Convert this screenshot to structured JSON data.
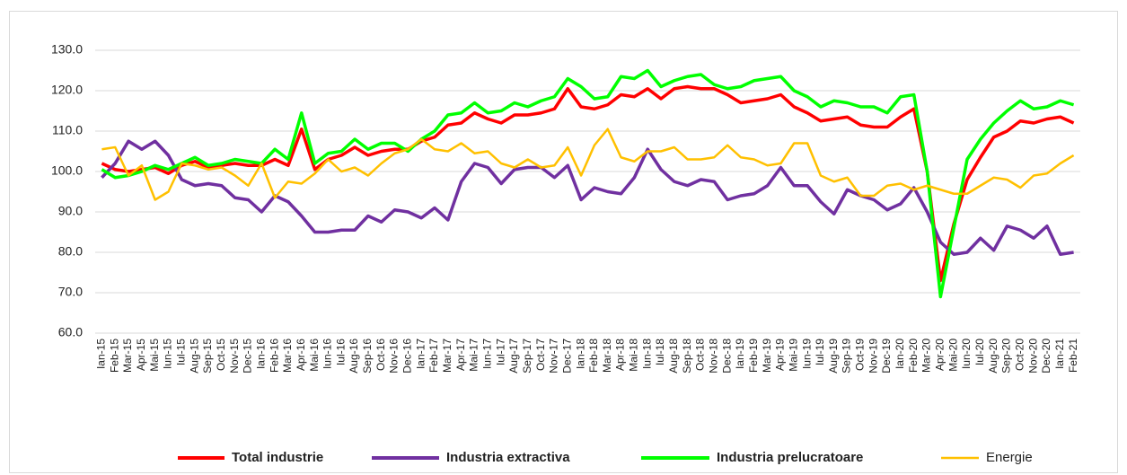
{
  "chart_data": {
    "type": "line",
    "categories": [
      "Ian-15",
      "Feb-15",
      "Mar-15",
      "Apr-15",
      "Mai-15",
      "Iun-15",
      "Iul-15",
      "Aug-15",
      "Sep-15",
      "Oct-15",
      "Nov-15",
      "Dec-15",
      "Ian-16",
      "Feb-16",
      "Mar-16",
      "Apr-16",
      "Mai-16",
      "Iun-16",
      "Iul-16",
      "Aug-16",
      "Sep-16",
      "Oct-16",
      "Nov-16",
      "Dec-16",
      "Ian-17",
      "Feb-17",
      "Mar-17",
      "Apr-17",
      "Mai-17",
      "Iun-17",
      "Iul-17",
      "Aug-17",
      "Sep-17",
      "Oct-17",
      "Nov-17",
      "Dec-17",
      "Ian-18",
      "Feb-18",
      "Mar-18",
      "Apr-18",
      "Mai-18",
      "Iun-18",
      "Iul-18",
      "Aug-18",
      "Sep-18",
      "Oct-18",
      "Nov-18",
      "Dec-18",
      "Ian-19",
      "Feb-19",
      "Mar-19",
      "Apr-19",
      "Mai-19",
      "Iun-19",
      "Iul-19",
      "Aug-19",
      "Sep-19",
      "Oct-19",
      "Nov-19",
      "Dec-19",
      "Ian-20",
      "Feb-20",
      "Mar-20",
      "Apr-20",
      "Mai-20",
      "Iun-20",
      "Iul-20",
      "Aug-20",
      "Sep-20",
      "Oct-20",
      "Nov-20",
      "Dec-20",
      "Ian-21",
      "Feb-21"
    ],
    "series": [
      {
        "name": "Total industrie",
        "color": "#ff0000",
        "values": [
          102,
          100.5,
          100,
          100.5,
          101,
          99.5,
          101.5,
          102.5,
          101,
          101.5,
          102,
          101.5,
          101.5,
          103,
          101.5,
          110.5,
          100.5,
          103,
          104,
          106,
          104,
          105,
          105.5,
          105.5,
          107.5,
          108.5,
          111.5,
          112,
          114.5,
          113,
          112,
          114,
          114,
          114.5,
          115.5,
          120.5,
          116,
          115.5,
          116.5,
          119,
          118.5,
          120.5,
          118,
          120.5,
          121,
          120.5,
          120.5,
          119,
          117,
          117.5,
          118,
          119,
          116,
          114.5,
          112.5,
          113,
          113.5,
          111.5,
          111,
          111,
          113.5,
          115.5,
          100,
          73,
          87,
          98,
          103.5,
          108.5,
          110,
          112.5,
          112,
          113,
          113.5,
          112
        ]
      },
      {
        "name": "Industria extractiva",
        "color": "#7030a0",
        "values": [
          98.5,
          102,
          107.5,
          105.5,
          107.5,
          104,
          98,
          96.5,
          97,
          96.5,
          93.5,
          93,
          90,
          94,
          92.5,
          89,
          85,
          85,
          85.5,
          85.5,
          89,
          87.5,
          90.5,
          90,
          88.5,
          91,
          88,
          97.5,
          102,
          101,
          97,
          100.5,
          101,
          101,
          98.5,
          101.5,
          93,
          96,
          95,
          94.5,
          98.5,
          105.5,
          100.5,
          97.5,
          96.5,
          98,
          97.5,
          93,
          94,
          94.5,
          96.5,
          101,
          96.5,
          96.5,
          92.5,
          89.5,
          95.5,
          94,
          93,
          90.5,
          92,
          96,
          90,
          82.5,
          79.5,
          80,
          83.5,
          80.5,
          86.5,
          85.5,
          83.5,
          86.5,
          79.5,
          80
        ]
      },
      {
        "name": "Industria prelucratoare",
        "color": "#00ff00",
        "values": [
          100.5,
          98.5,
          99,
          100,
          101.5,
          100.5,
          102,
          103.5,
          101.5,
          102,
          103,
          102.5,
          102,
          105.5,
          103,
          114.5,
          102,
          104.5,
          105,
          108,
          105.5,
          107,
          107,
          105,
          108,
          110,
          114,
          114.5,
          117,
          114.5,
          115,
          117,
          116,
          117.5,
          118.5,
          123,
          121,
          118,
          118.5,
          123.5,
          123,
          125,
          121,
          122.5,
          123.5,
          124,
          121.5,
          120.5,
          121,
          122.5,
          123,
          123.5,
          120,
          118.5,
          116,
          117.5,
          117,
          116,
          116,
          114.5,
          118.5,
          119,
          100,
          69,
          86,
          103,
          108,
          112,
          115,
          117.5,
          115.5,
          116,
          117.5,
          116.5
        ]
      },
      {
        "name": "Energie",
        "color": "#ffc000",
        "values": [
          105.5,
          106,
          99,
          101.5,
          93,
          95,
          102,
          101.5,
          100.5,
          101,
          99,
          96.5,
          102,
          93.5,
          97.5,
          97,
          99.5,
          103,
          100,
          101,
          99,
          102,
          104.5,
          105.5,
          108,
          105.5,
          105,
          107,
          104.5,
          105,
          102,
          101,
          103,
          101,
          101.5,
          106,
          99,
          106.5,
          110.5,
          103.5,
          102.5,
          105,
          105,
          106,
          103,
          103,
          103.5,
          106.5,
          103.5,
          103,
          101.5,
          102,
          107,
          107,
          99,
          97.5,
          98.5,
          94,
          94,
          96.5,
          97,
          95.5,
          96.5,
          95.5,
          94.5,
          94.5,
          96.5,
          98.5,
          98,
          96,
          99,
          99.5,
          102,
          104
        ]
      }
    ],
    "ylim": [
      60,
      130
    ],
    "yticks": [
      {
        "value": 60,
        "label": "60.0"
      },
      {
        "value": 70,
        "label": "70.0"
      },
      {
        "value": 80,
        "label": "80.0"
      },
      {
        "value": 90,
        "label": "90.0"
      },
      {
        "value": 100,
        "label": "100.0"
      },
      {
        "value": 110,
        "label": "110.0"
      },
      {
        "value": 120,
        "label": "120.0"
      },
      {
        "value": 130,
        "label": "130.0"
      }
    ],
    "grid": true,
    "legend": "bottom"
  }
}
